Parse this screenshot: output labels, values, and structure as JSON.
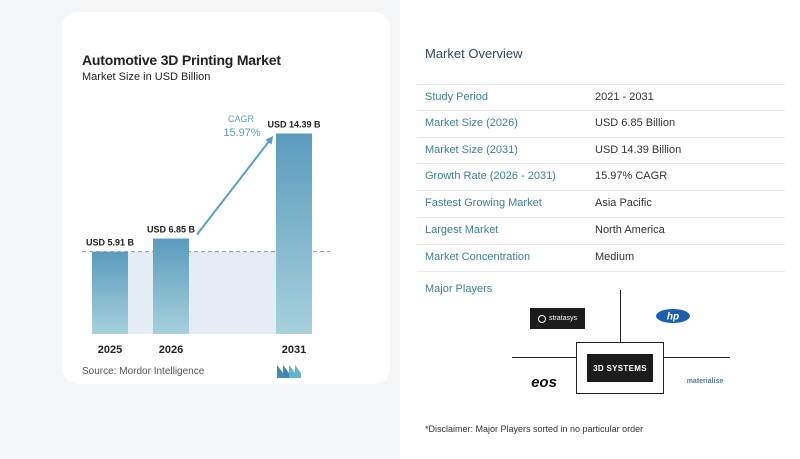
{
  "chart_data": {
    "type": "bar",
    "title": "Automotive 3D Printing Market",
    "subtitle": "Market Size in USD Billion",
    "categories": [
      "2025",
      "2026",
      "2031"
    ],
    "values": [
      5.91,
      6.85,
      14.39
    ],
    "data_labels": [
      "USD 5.91 B",
      "USD 6.85 B",
      "USD 14.39 B"
    ],
    "ylim": [
      0,
      15
    ],
    "reference_value": 5.91,
    "annotation": {
      "label": "CAGR",
      "value": "15.97%"
    },
    "colors": {
      "bar_top": "#5a9bbd",
      "bar_bottom": "#a6d1dc",
      "band": "#e4edf3",
      "arrow": "#5b9dc4",
      "cagr": "#5b9dc4"
    }
  },
  "source": "Source:  Mordor Intelligence",
  "brand_logo": "mordor-intelligence-logo",
  "overview": {
    "title": "Market Overview",
    "rows": [
      {
        "label": "Study Period",
        "value": "2021 - 2031"
      },
      {
        "label": "Market Size (2026)",
        "value": "USD 6.85 Billion"
      },
      {
        "label": "Market Size (2031)",
        "value": "USD 14.39 Billion"
      },
      {
        "label": "Growth Rate (2026 - 2031)",
        "value": "15.97% CAGR"
      },
      {
        "label": "Fastest Growing Market",
        "value": "Asia Pacific"
      },
      {
        "label": "Largest Market",
        "value": "North America"
      },
      {
        "label": "Market Concentration",
        "value": "Medium"
      }
    ]
  },
  "major_players": {
    "title": "Major Players",
    "logos": {
      "stratasys": "stratasys",
      "hp": "hp",
      "3d_systems": "3D SYSTEMS",
      "eos": "eos",
      "materialise": "materialise"
    }
  },
  "disclaimer": "*Disclaimer: Major Players sorted in no particular order"
}
